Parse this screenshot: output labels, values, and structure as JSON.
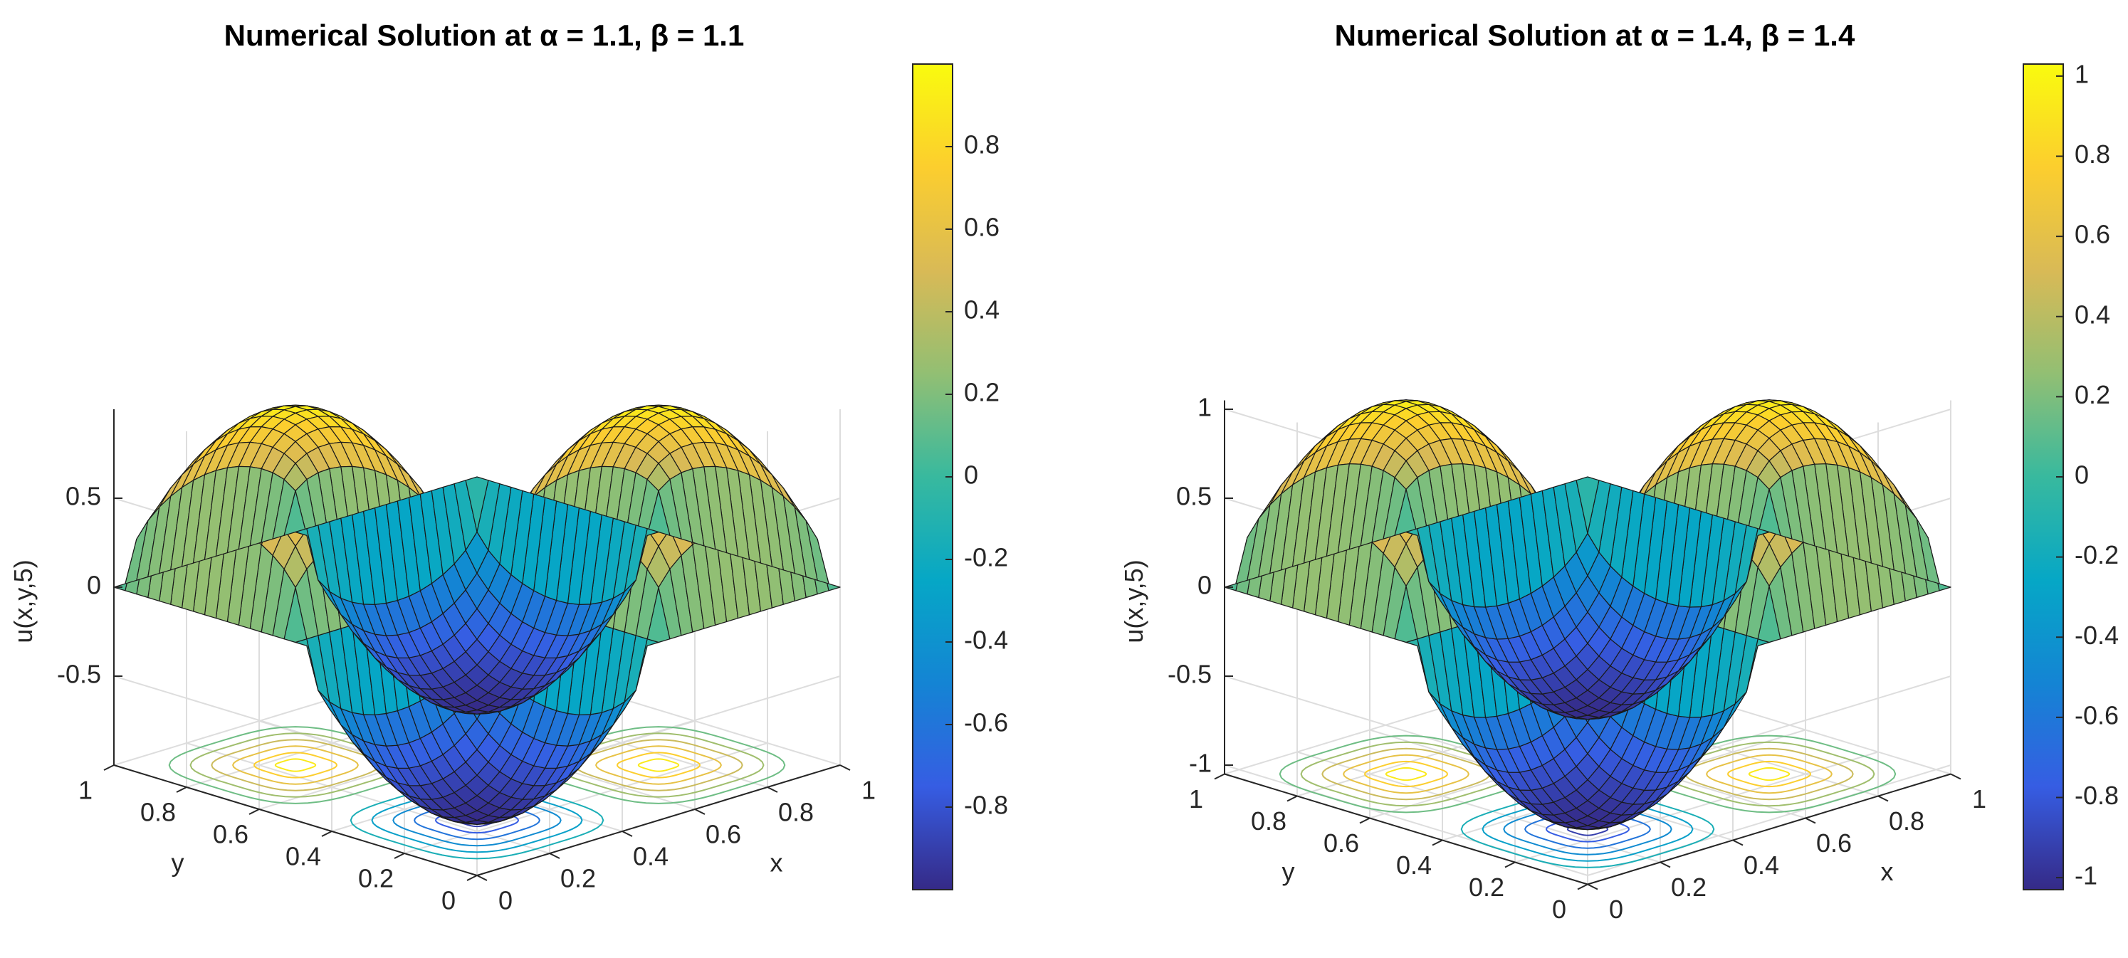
{
  "chart_data": [
    {
      "type": "surface",
      "title": "Numerical Solution at α = 1.1, β = 1.1",
      "xlabel": "x",
      "ylabel": "y",
      "zlabel": "u(x,y,5)",
      "x_range": [
        0,
        1
      ],
      "y_range": [
        0,
        1
      ],
      "x_ticks": [
        "0",
        "0.2",
        "0.4",
        "0.6",
        "0.8",
        "1"
      ],
      "y_ticks": [
        "0",
        "0.2",
        "0.4",
        "0.6",
        "0.8",
        "1"
      ],
      "z_ticks": [
        "-0.5",
        "0",
        "0.5"
      ],
      "zlim": [
        -1,
        1
      ],
      "surface_peak": 1.0,
      "contour_below": true,
      "colormap": "parula",
      "colorbar": {
        "range": [
          -1,
          1
        ],
        "ticks": [
          "-0.8",
          "-0.6",
          "-0.4",
          "-0.2",
          "0",
          "0.2",
          "0.4",
          "0.6",
          "0.8"
        ]
      },
      "grid": true
    },
    {
      "type": "surface",
      "title": "Numerical Solution at α = 1.4, β = 1.4",
      "xlabel": "x",
      "ylabel": "y",
      "zlabel": "u(x,y,5)",
      "x_range": [
        0,
        1
      ],
      "y_range": [
        0,
        1
      ],
      "x_ticks": [
        "0",
        "0.2",
        "0.4",
        "0.6",
        "0.8",
        "1"
      ],
      "y_ticks": [
        "0",
        "0.2",
        "0.4",
        "0.6",
        "0.8",
        "1"
      ],
      "z_ticks": [
        "-1",
        "-0.5",
        "0",
        "0.5",
        "1"
      ],
      "zlim": [
        -1.05,
        1.05
      ],
      "surface_peak": 1.03,
      "contour_below": true,
      "colormap": "parula",
      "colorbar": {
        "range": [
          -1.03,
          1.03
        ],
        "ticks": [
          "-1",
          "-0.8",
          "-0.6",
          "-0.4",
          "-0.2",
          "0",
          "0.2",
          "0.4",
          "0.6",
          "0.8",
          "1"
        ]
      },
      "grid": true
    }
  ]
}
